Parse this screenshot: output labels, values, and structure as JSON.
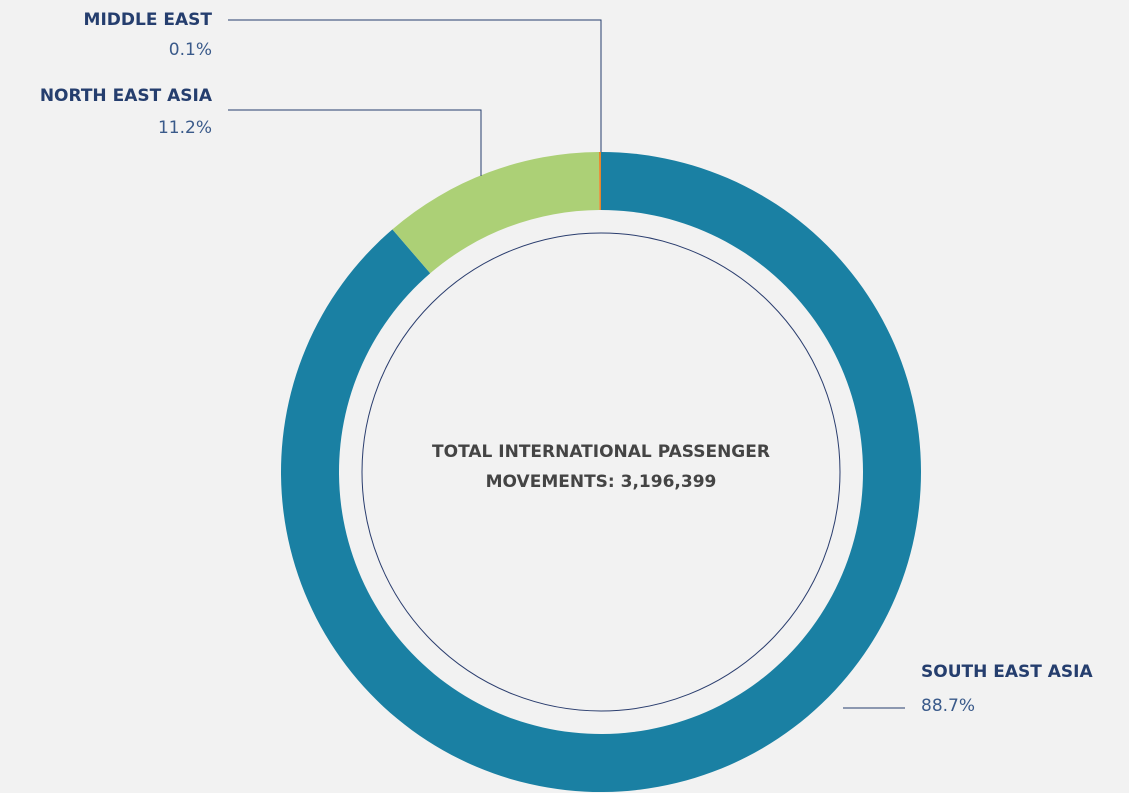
{
  "chart_data": {
    "type": "donut",
    "categories": [
      "SOUTH EAST ASIA",
      "NORTH EAST ASIA",
      "MIDDLE EAST"
    ],
    "values": [
      88.7,
      11.2,
      0.1
    ],
    "value_labels": [
      "88.7%",
      "11.2%",
      "0.1%"
    ],
    "colors": [
      "#1a80a3",
      "#acd076",
      "#e8862a"
    ],
    "center_label": [
      "TOTAL INTERNATIONAL PASSENGER",
      "MOVEMENTS: 3,196,399"
    ]
  }
}
